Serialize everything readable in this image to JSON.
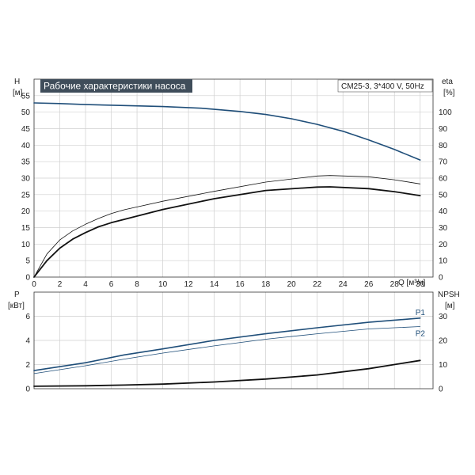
{
  "chart_data": [
    {
      "type": "line",
      "title": "Рабочие характеристики насоса",
      "subtitle": "CM25-3, 3*400 V, 50Hz",
      "xlabel": "Q [м³/ч]",
      "ylabel_left": "H",
      "ylabel_left_unit": "[м]",
      "ylabel_right": "eta",
      "ylabel_right_unit": "[%]",
      "xlim": [
        0,
        31
      ],
      "ylim_left": [
        0,
        60
      ],
      "ylim_right": [
        0,
        120
      ],
      "x_ticks": [
        "0",
        "2",
        "4",
        "6",
        "8",
        "10",
        "12",
        "14",
        "16",
        "18",
        "20",
        "22",
        "24",
        "26",
        "28",
        "30"
      ],
      "y_left_ticks": [
        "0",
        "5",
        "10",
        "15",
        "20",
        "25",
        "30",
        "35",
        "40",
        "45",
        "50",
        "55"
      ],
      "y_right_ticks": [
        "0",
        "10",
        "20",
        "30",
        "40",
        "50",
        "60",
        "70",
        "80",
        "90",
        "100"
      ],
      "grid": true,
      "series": [
        {
          "axis": "left",
          "color": "#1f4e79",
          "width": 1.6,
          "x": [
            0,
            2,
            4,
            7,
            10,
            13,
            16,
            18,
            20,
            22,
            24,
            26,
            28,
            30
          ],
          "y": [
            52.8,
            52.6,
            52.3,
            52.0,
            51.7,
            51.2,
            50.2,
            49.3,
            48.0,
            46.3,
            44.2,
            41.6,
            38.7,
            35.5
          ]
        },
        {
          "axis": "right",
          "color": "#111111",
          "width": 0.8,
          "x": [
            0,
            1,
            2,
            3,
            4,
            5,
            6,
            7,
            10,
            14,
            18,
            22,
            23,
            26,
            28,
            30
          ],
          "y": [
            0,
            14,
            22.5,
            28,
            32,
            35.5,
            38.5,
            40.8,
            46,
            52,
            57.6,
            61.3,
            61.6,
            60.8,
            59,
            56.5
          ]
        },
        {
          "axis": "right",
          "color": "#111111",
          "width": 1.8,
          "x": [
            0,
            1,
            2,
            3,
            4,
            5,
            6,
            7,
            10,
            14,
            18,
            22,
            23,
            26,
            28,
            30
          ],
          "y": [
            0,
            10,
            17.5,
            23,
            27,
            30.5,
            33,
            35,
            41,
            47.5,
            52.5,
            54.6,
            54.7,
            53.6,
            51.8,
            49.4
          ]
        }
      ]
    },
    {
      "type": "line",
      "ylabel_left": "P",
      "ylabel_left_unit": "[кВт]",
      "ylabel_right": "NPSH",
      "ylabel_right_unit": "[м]",
      "xlim": [
        0,
        31
      ],
      "ylim_left": [
        0,
        8
      ],
      "ylim_right": [
        0,
        40
      ],
      "y_left_ticks": [
        "0",
        "2",
        "4",
        "6"
      ],
      "y_right_ticks": [
        "0",
        "10",
        "20",
        "30"
      ],
      "grid": true,
      "series": [
        {
          "name": "P1",
          "axis": "left",
          "color": "#1f4e79",
          "width": 1.6,
          "x": [
            0,
            4,
            7,
            10,
            14,
            18,
            22,
            26,
            30
          ],
          "y": [
            1.5,
            2.15,
            2.8,
            3.3,
            4.0,
            4.55,
            5.05,
            5.5,
            5.85
          ]
        },
        {
          "name": "P2",
          "axis": "left",
          "color": "#1f4e79",
          "width": 0.8,
          "x": [
            0,
            4,
            7,
            10,
            14,
            18,
            22,
            26,
            30
          ],
          "y": [
            1.25,
            1.9,
            2.45,
            2.95,
            3.55,
            4.1,
            4.55,
            4.95,
            5.15
          ]
        },
        {
          "axis": "right",
          "color": "#111111",
          "width": 1.8,
          "x": [
            0,
            4,
            7,
            10,
            14,
            18,
            22,
            26,
            30
          ],
          "y": [
            1.0,
            1.2,
            1.5,
            1.9,
            2.8,
            4.0,
            5.7,
            8.3,
            11.7
          ]
        }
      ]
    }
  ]
}
